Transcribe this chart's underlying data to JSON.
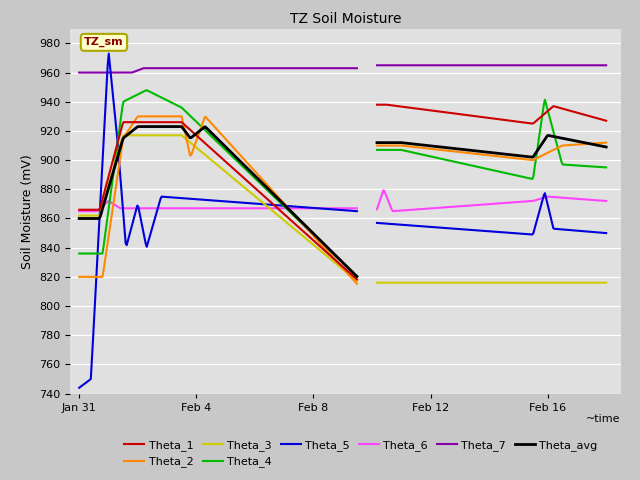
{
  "title": "TZ Soil Moisture",
  "xlabel": "~time",
  "ylabel": "Soil Moisture (mV)",
  "ylim": [
    740,
    990
  ],
  "yticks": [
    740,
    760,
    780,
    800,
    820,
    840,
    860,
    880,
    900,
    920,
    940,
    960,
    980
  ],
  "fig_bg_color": "#c8c8c8",
  "plot_bg_color": "#e0e0e0",
  "legend_label": "TZ_sm",
  "colors": {
    "Theta_1": "#cc0000",
    "Theta_2": "#ff8800",
    "Theta_3": "#cccc00",
    "Theta_4": "#00bb00",
    "Theta_5": "#0000dd",
    "Theta_6": "#ff44ff",
    "Theta_7": "#8800aa",
    "Theta_avg": "#000000"
  },
  "date_ticks": [
    "Jan 31",
    "Feb 4",
    "Feb 8",
    "Feb 12",
    "Feb 16"
  ],
  "date_tick_positions": [
    0,
    4,
    8,
    12,
    16
  ],
  "xlim": [
    -0.3,
    18.5
  ],
  "gap_start": 9.5,
  "gap_end": 10.15,
  "lw": 1.5
}
